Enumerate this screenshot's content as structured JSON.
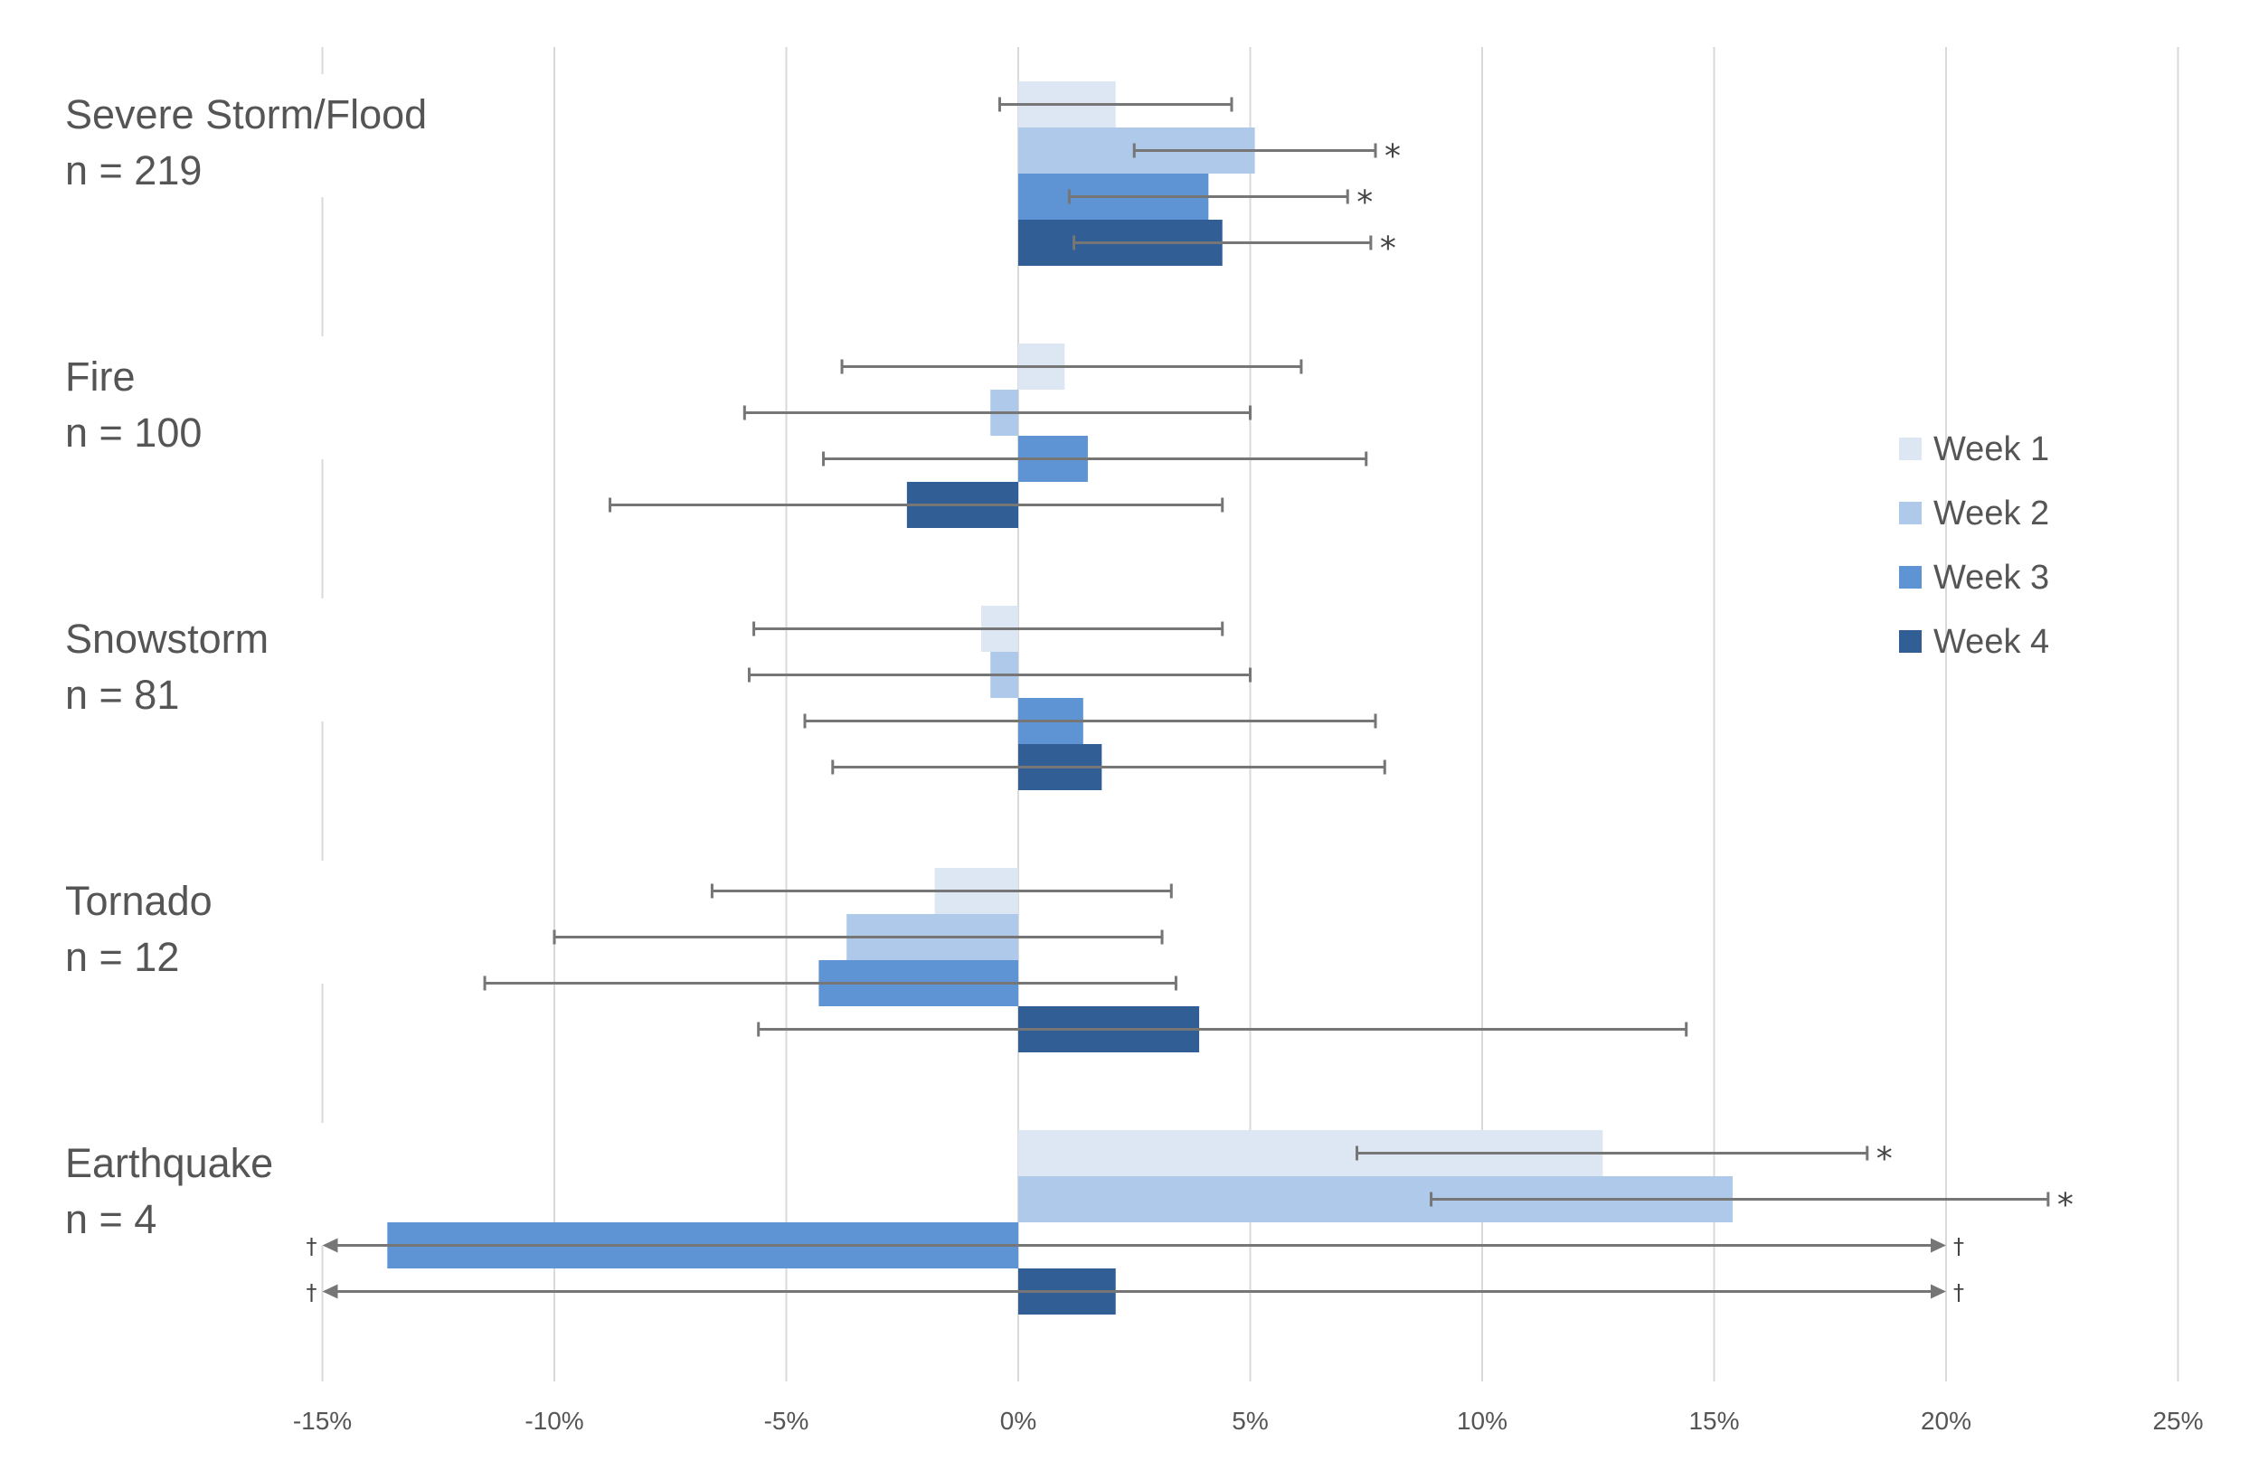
{
  "chart_data": {
    "type": "bar",
    "orientation": "horizontal",
    "xlim": [
      -15,
      25
    ],
    "x_ticks": [
      "-15%",
      "-10%",
      "-5%",
      "0%",
      "5%",
      "10%",
      "15%",
      "20%",
      "25%"
    ],
    "x_tick_values": [
      -15,
      -10,
      -5,
      0,
      5,
      10,
      15,
      20,
      25
    ],
    "grid": "vertical",
    "legend_position": "right",
    "colors": {
      "Week 1": "#dde7f4",
      "Week 2": "#aec9ea",
      "Week 3": "#5e93d4",
      "Week 4": "#325e96",
      "errorbar": "#767676",
      "gridline": "#d9d9d9"
    },
    "categories": [
      {
        "name": "Severe Storm/Flood",
        "n_label": "n = 219"
      },
      {
        "name": "Fire",
        "n_label": "n = 100"
      },
      {
        "name": "Snowstorm",
        "n_label": "n = 81"
      },
      {
        "name": "Tornado",
        "n_label": "n = 12"
      },
      {
        "name": "Earthquake",
        "n_label": "n = 4"
      }
    ],
    "series": [
      {
        "name": "Week 1",
        "values": [
          2.1,
          1.0,
          -0.8,
          -1.8,
          12.6
        ],
        "ci_low": [
          -0.4,
          -3.8,
          -5.7,
          -6.6,
          7.3
        ],
        "ci_high": [
          4.6,
          6.1,
          4.4,
          3.3,
          18.3
        ],
        "markers": [
          "",
          "",
          "",
          "",
          "*"
        ],
        "ci_truncated": [
          false,
          false,
          false,
          false,
          false
        ]
      },
      {
        "name": "Week 2",
        "values": [
          5.1,
          -0.6,
          -0.6,
          -3.7,
          15.4
        ],
        "ci_low": [
          2.5,
          -5.9,
          -5.8,
          -10.0,
          8.9
        ],
        "ci_high": [
          7.7,
          5.0,
          5.0,
          3.1,
          22.2
        ],
        "markers": [
          "*",
          "",
          "",
          "",
          "*"
        ],
        "ci_truncated": [
          false,
          false,
          false,
          false,
          false
        ]
      },
      {
        "name": "Week 3",
        "values": [
          4.1,
          1.5,
          1.4,
          -4.3,
          -13.6
        ],
        "ci_low": [
          1.1,
          -4.2,
          -4.6,
          -11.5,
          -15.0
        ],
        "ci_high": [
          7.1,
          7.5,
          7.7,
          3.4,
          20.0
        ],
        "markers": [
          "*",
          "",
          "",
          "",
          ""
        ],
        "ci_truncated": [
          false,
          false,
          false,
          false,
          true
        ]
      },
      {
        "name": "Week 4",
        "values": [
          4.4,
          -2.4,
          1.8,
          3.9,
          2.1
        ],
        "ci_low": [
          1.2,
          -8.8,
          -4.0,
          -5.6,
          -15.0
        ],
        "ci_high": [
          7.6,
          4.4,
          7.9,
          14.4,
          20.0
        ],
        "markers": [
          "*",
          "",
          "",
          "",
          ""
        ],
        "ci_truncated": [
          false,
          false,
          false,
          false,
          true
        ]
      }
    ],
    "significance_marker": "*",
    "truncation_marker": "†"
  }
}
